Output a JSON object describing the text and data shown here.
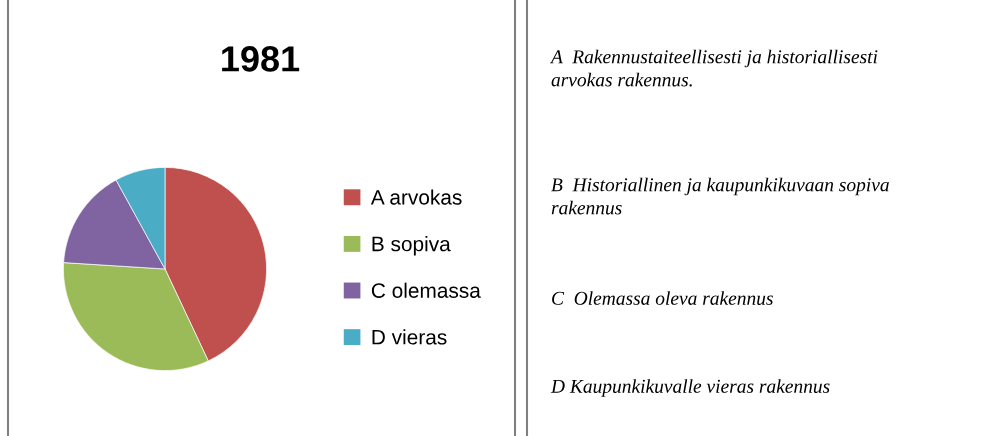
{
  "chart_data": [
    {
      "type": "pie",
      "title": "1981",
      "categories": [
        "A arvokas",
        "B sopiva",
        "C olemassa",
        "D vieras"
      ],
      "values": [
        43,
        33,
        16,
        8
      ],
      "colors": [
        "#c0504d",
        "#9bbb59",
        "#8064a2",
        "#4bacc6"
      ],
      "legend": "right"
    },
    {
      "type": "other",
      "annotations": [
        "A  Rakennustaiteellisesti ja historiallisesti\narvokas rakennus.",
        "B  Historiallinen ja kaupunkikuvaan sopiva\nrakennus",
        "C  Olemassa oleva rakennus",
        "D Kaupunkikuvalle vieras rakennus"
      ]
    }
  ]
}
